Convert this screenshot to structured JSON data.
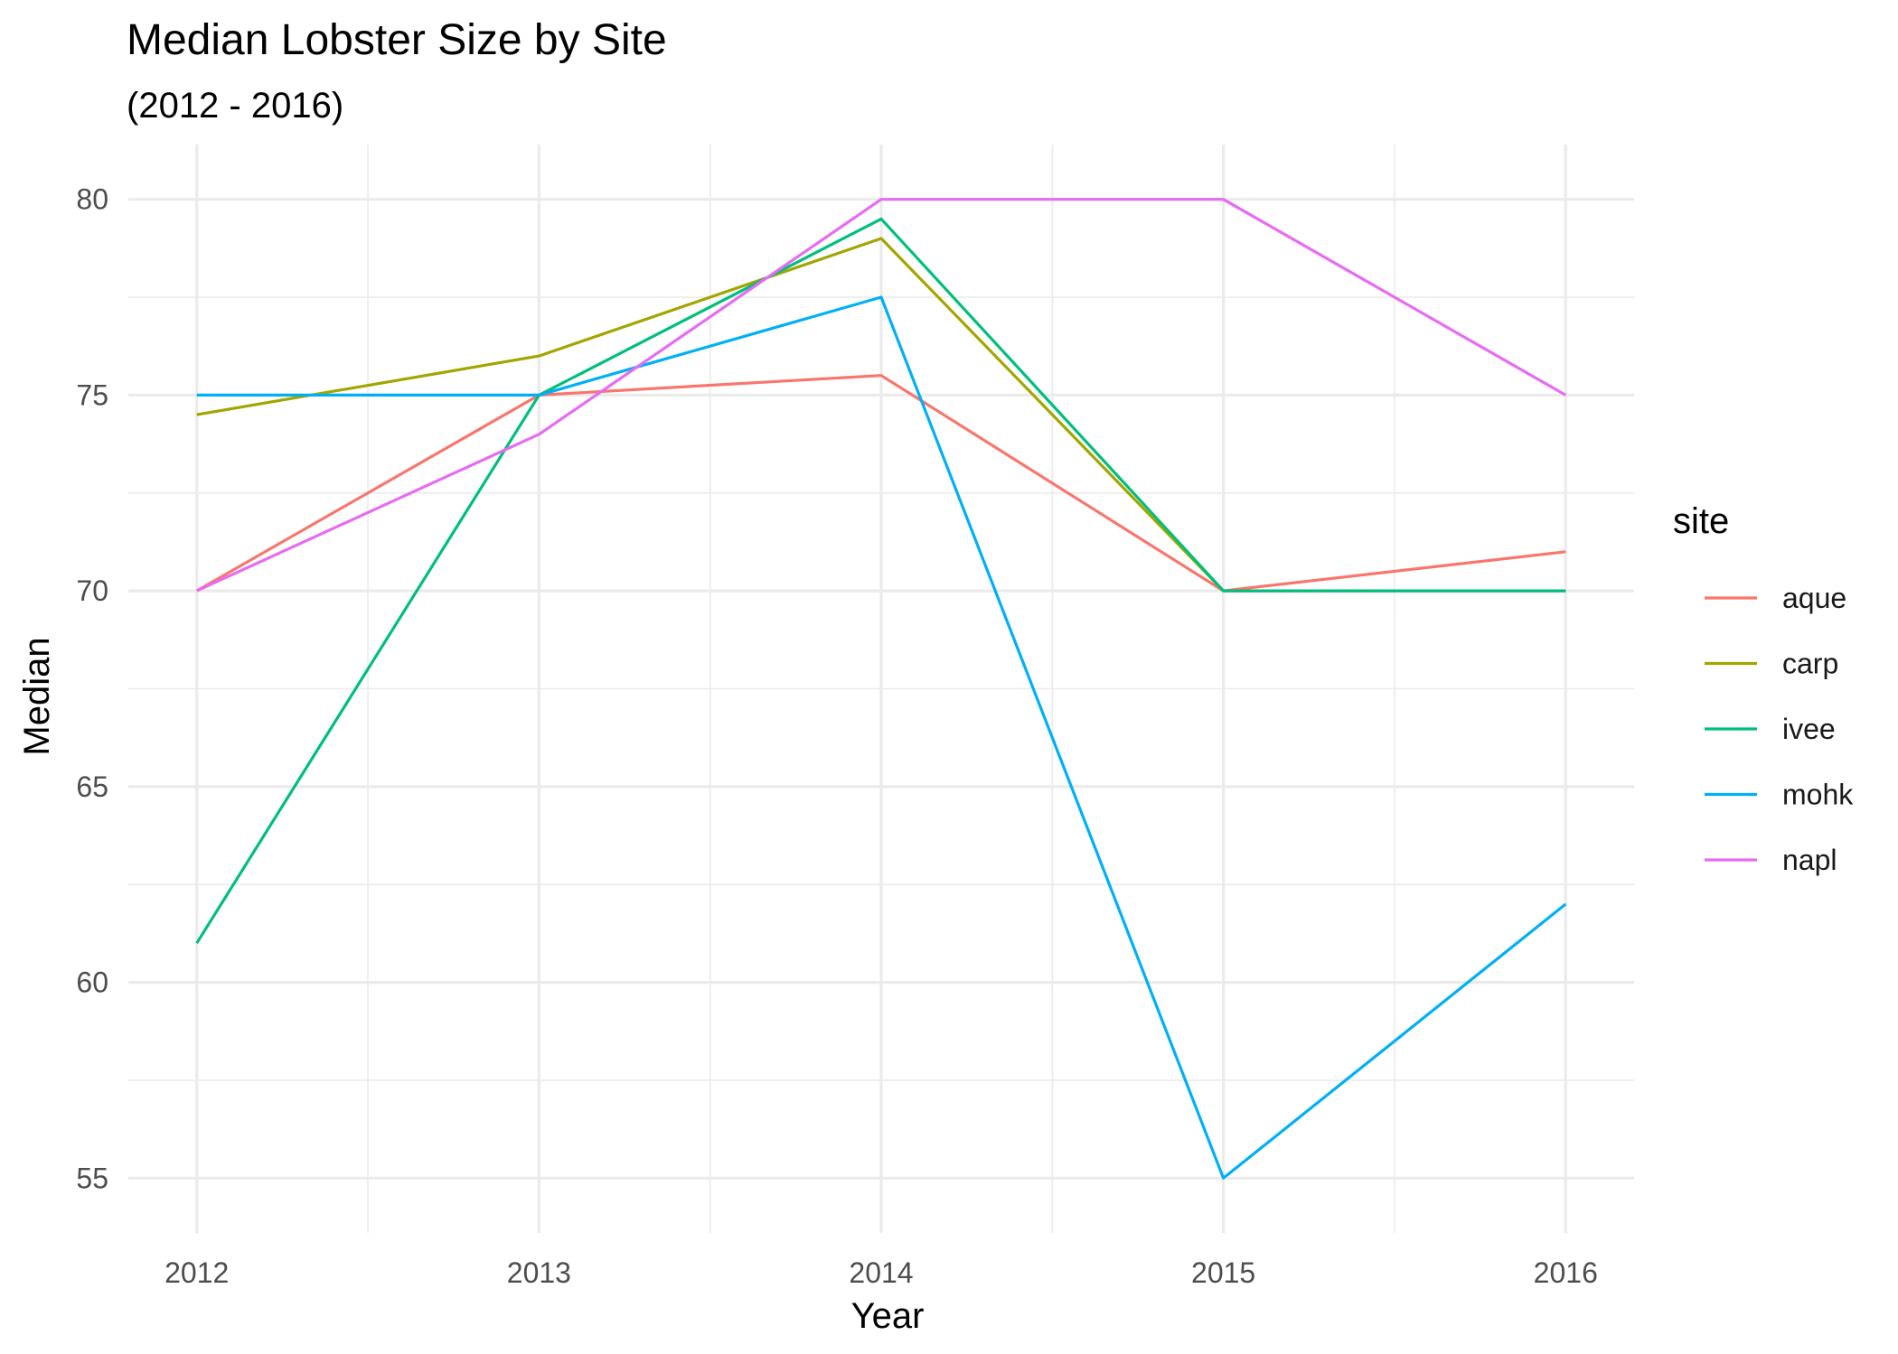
{
  "chart_data": {
    "type": "line",
    "title": "Median Lobster Size by Site",
    "subtitle": "(2012 - 2016)",
    "xlabel": "Year",
    "ylabel": "Median",
    "x": [
      2012,
      2013,
      2014,
      2015,
      2016
    ],
    "x_tick_labels": [
      "2012",
      "2013",
      "2014",
      "2015",
      "2016"
    ],
    "y_ticks": [
      55,
      60,
      65,
      70,
      75,
      80
    ],
    "y_tick_labels": [
      "55",
      "60",
      "65",
      "70",
      "75",
      "80"
    ],
    "xlim": [
      2011.8,
      2016.2
    ],
    "ylim": [
      53.6,
      81.4
    ],
    "grid": true,
    "legend": {
      "title": "site",
      "position": "right"
    },
    "series": [
      {
        "name": "aque",
        "color": "#F8766D",
        "values": [
          70,
          75,
          75.5,
          70,
          71
        ]
      },
      {
        "name": "carp",
        "color": "#A3A500",
        "values": [
          74.5,
          76,
          79,
          70,
          70
        ]
      },
      {
        "name": "ivee",
        "color": "#00BF7D",
        "values": [
          61,
          75,
          79.5,
          70,
          70
        ]
      },
      {
        "name": "mohk",
        "color": "#00B0F6",
        "values": [
          75,
          75,
          77.5,
          55,
          62
        ]
      },
      {
        "name": "napl",
        "color": "#E76BF3",
        "values": [
          70,
          74,
          80,
          80,
          75
        ]
      }
    ]
  }
}
